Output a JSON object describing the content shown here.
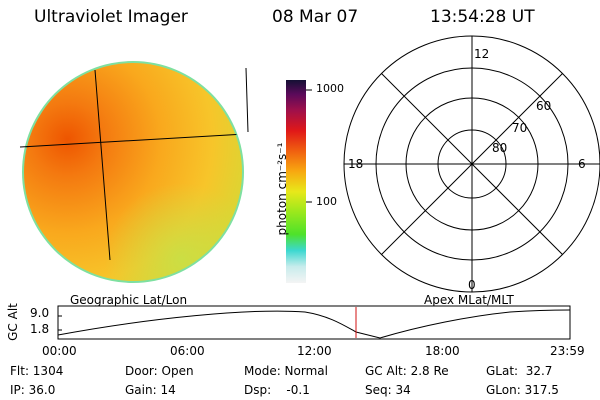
{
  "header": {
    "title": "Ultraviolet Imager",
    "date": "08 Mar 07",
    "time": "13:54:28 UT"
  },
  "colorbar": {
    "unit_label": "photon cm⁻²s⁻¹",
    "tick_high": "1000",
    "tick_low": "100"
  },
  "polar": {
    "mlt_labels": {
      "top": "12",
      "left": "18",
      "right": "6",
      "bottom": "0"
    },
    "lat_labels": [
      "60",
      "70",
      "80"
    ]
  },
  "timeline": {
    "left_title": "Geographic Lat/Lon",
    "right_title": "Apex MLat/MLT",
    "ylabel": "GC Alt",
    "y_ticks": [
      "9.0",
      "1.8"
    ],
    "x_ticks": [
      "00:00",
      "06:00",
      "12:00",
      "18:00",
      "23:59"
    ]
  },
  "info": {
    "flt": "Flt: 1304",
    "ip": "IP: 36.0",
    "door": "Door: Open",
    "gain": "Gain: 14",
    "mode": "Mode: Normal",
    "dsp": "Dsp:    -0.1",
    "gcalt": "GC Alt: 2.8 Re",
    "seq": "Seq: 34",
    "glat": "GLat:  32.7",
    "glon": "GLon: 317.5"
  }
}
